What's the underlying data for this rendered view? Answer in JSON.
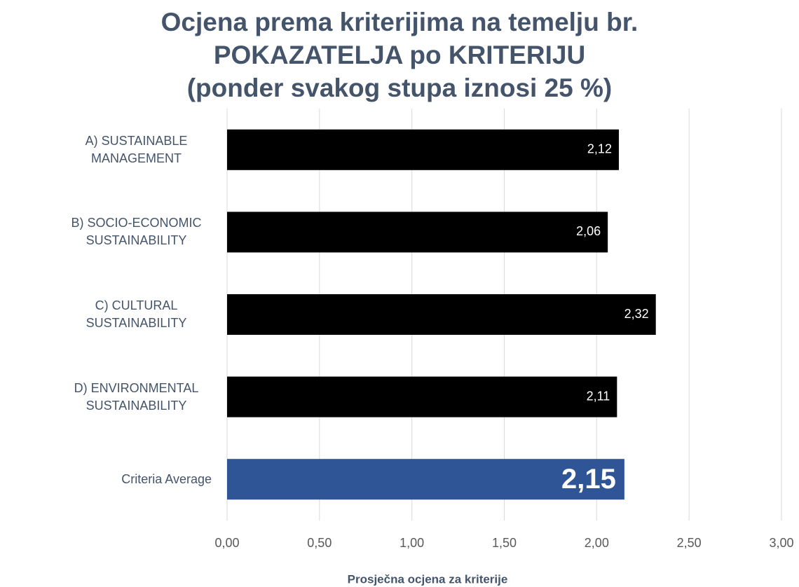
{
  "chart_data": {
    "type": "barh",
    "title": [
      "Ocjena prema kriterijima na temelju br.",
      "POKAZATELJA po KRITERIJU",
      "(ponder svakog stupa iznosi 25 %)"
    ],
    "categories": [
      "A) SUSTAINABLE MANAGEMENT",
      "B) SOCIO-ECONOMIC SUSTAINABILITY",
      "C) CULTURAL SUSTAINABILITY",
      "D) ENVIRONMENTAL SUSTAINABILITY",
      "Criteria Average"
    ],
    "values": [
      2.12,
      2.06,
      2.32,
      2.11,
      2.15
    ],
    "value_labels": [
      "2,12",
      "2,06",
      "2,32",
      "2,11",
      "2,15"
    ],
    "colors": [
      "#000000",
      "#000000",
      "#000000",
      "#000000",
      "#2f5597"
    ],
    "xlim": [
      0,
      3
    ],
    "xticks": [
      {
        "value": 0,
        "label": "0,00"
      },
      {
        "value": 0.5,
        "label": "0,50"
      },
      {
        "value": 1,
        "label": "1,00"
      },
      {
        "value": 1.5,
        "label": "1,50"
      },
      {
        "value": 2,
        "label": "2,00"
      },
      {
        "value": 2.5,
        "label": "2,50"
      },
      {
        "value": 3,
        "label": "3,00"
      }
    ],
    "xlabel": "Prosječna ocjena za kriterije",
    "grid": true
  }
}
